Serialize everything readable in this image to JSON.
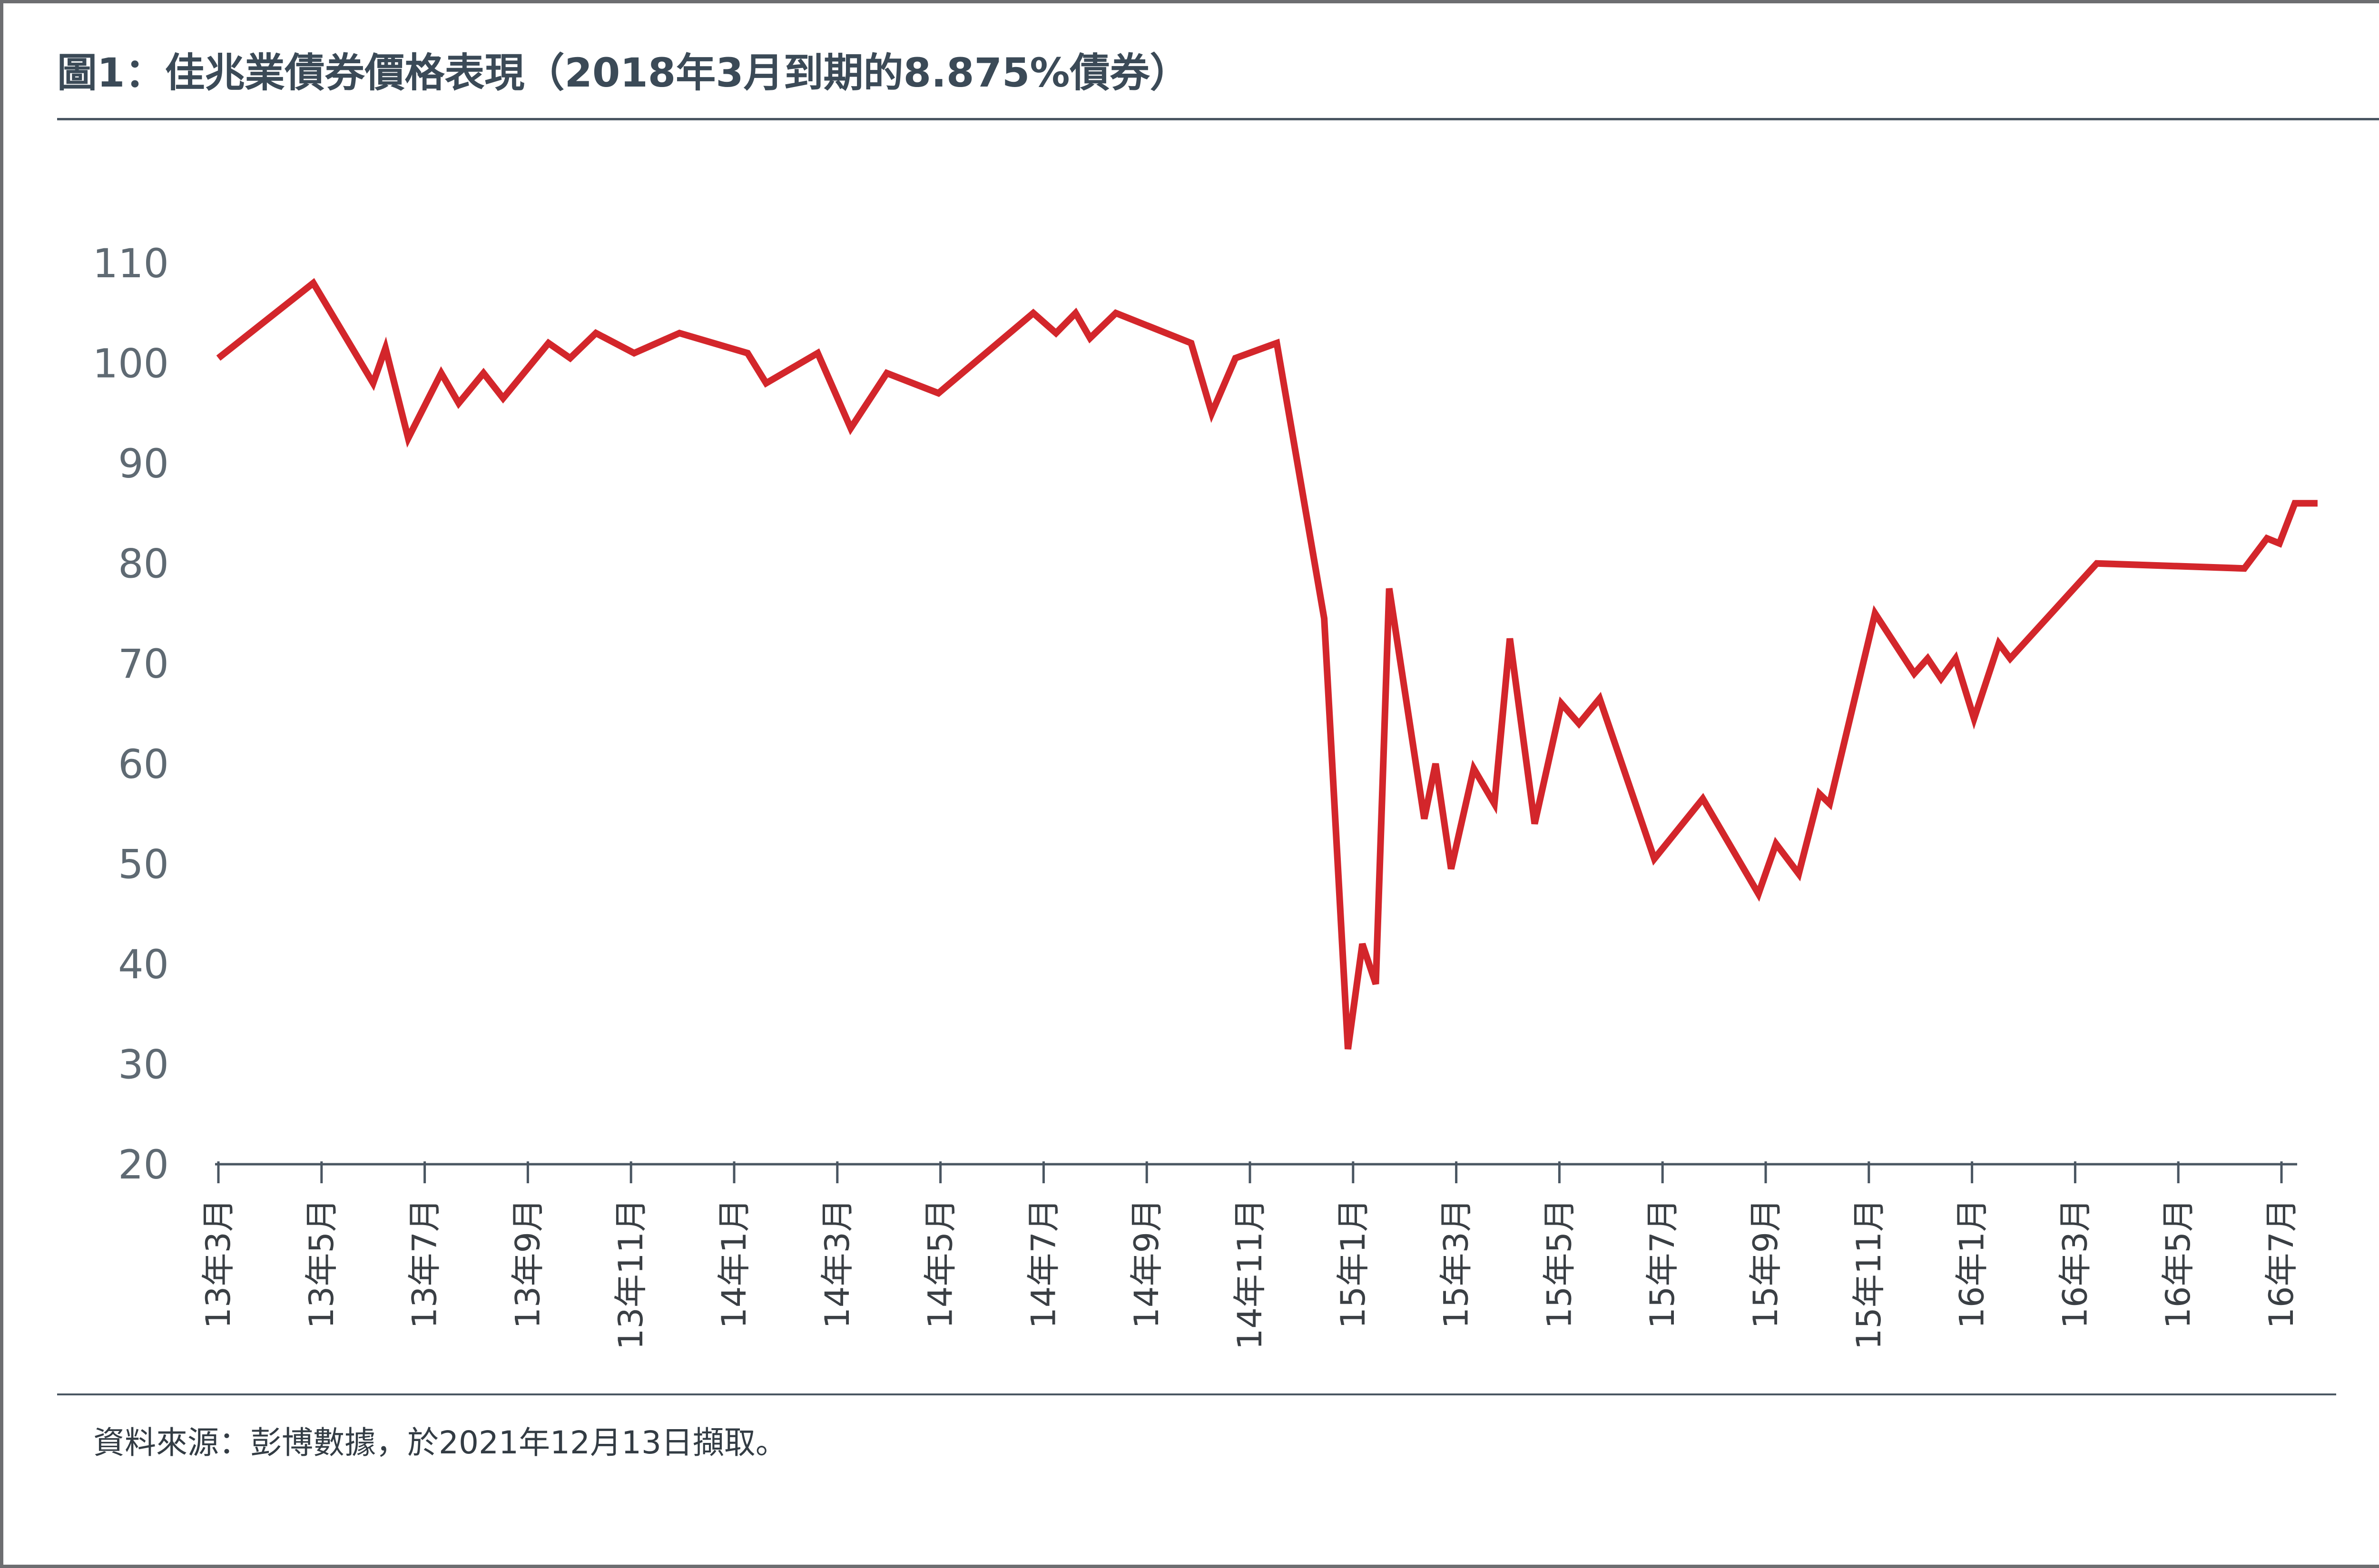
{
  "title": "圖1：佳兆業債券價格表現（2018年3月到期的8.875%債券）",
  "source": "資料來源：彭博數據，於2021年12月13日擷取。",
  "colors": {
    "line": "#d3262b",
    "axis": "#4a5662",
    "text": "#5f6a73",
    "frame": "#6d6e71"
  },
  "chart_data": {
    "type": "line",
    "title": "圖1：佳兆業債券價格表現（2018年3月到期的8.875%債券）",
    "xlabel": "",
    "ylabel": "",
    "ylim": [
      20,
      110
    ],
    "yticks": [
      "110",
      "100",
      "90",
      "80",
      "70",
      "60",
      "50",
      "40",
      "30",
      "20"
    ],
    "xticks": [
      "13年3月",
      "13年5月",
      "13年7月",
      "13年9月",
      "13年11月",
      "14年1月",
      "14年3月",
      "14年5月",
      "14年7月",
      "14年9月",
      "14年11月",
      "15年1月",
      "15年3月",
      "15年5月",
      "15年7月",
      "15年9月",
      "15年11月",
      "16年1月",
      "16年3月",
      "16年5月",
      "16年7月"
    ],
    "grid": false,
    "legend": "none",
    "series": [
      {
        "x": [
          0,
          0.92,
          1.5,
          1.62,
          1.84,
          2.16,
          2.33,
          2.57,
          2.76,
          3.2,
          3.41,
          3.66,
          4.03,
          4.47,
          5.13,
          5.31,
          5.81,
          6.13,
          6.48,
          6.98,
          7.9,
          8.12,
          8.31,
          8.45,
          8.7,
          9.43,
          9.63,
          9.86,
          10.26,
          10.72,
          10.95,
          11.09,
          11.22,
          11.35,
          11.69,
          11.8,
          11.95,
          12.17,
          12.37,
          12.52,
          12.76,
          13.02,
          13.19,
          13.39,
          13.92,
          14.39,
          14.93,
          15.1,
          15.32,
          15.52,
          15.62,
          16.06,
          16.44,
          16.57,
          16.7,
          16.84,
          17.02,
          17.26,
          17.37,
          18.21,
          19.64,
          19.86,
          19.98,
          20.13,
          20.35
        ],
        "y": [
          100.5,
          108,
          98,
          101.5,
          92.5,
          99,
          96,
          99,
          96.5,
          102,
          100.5,
          103,
          101,
          103,
          101,
          98,
          101,
          93.5,
          99,
          97,
          105,
          103,
          105,
          102.5,
          105,
          102,
          95,
          100.5,
          102,
          74.5,
          31.5,
          42,
          38,
          77.5,
          54.5,
          60,
          49.5,
          59.5,
          56,
          72.5,
          54,
          66,
          64,
          66.5,
          50.5,
          56.5,
          47,
          52,
          49,
          57,
          56,
          75,
          69,
          70.5,
          68.5,
          70.5,
          64.5,
          72,
          70.5,
          80,
          79.5,
          82.5,
          82,
          86,
          86
        ]
      }
    ]
  }
}
